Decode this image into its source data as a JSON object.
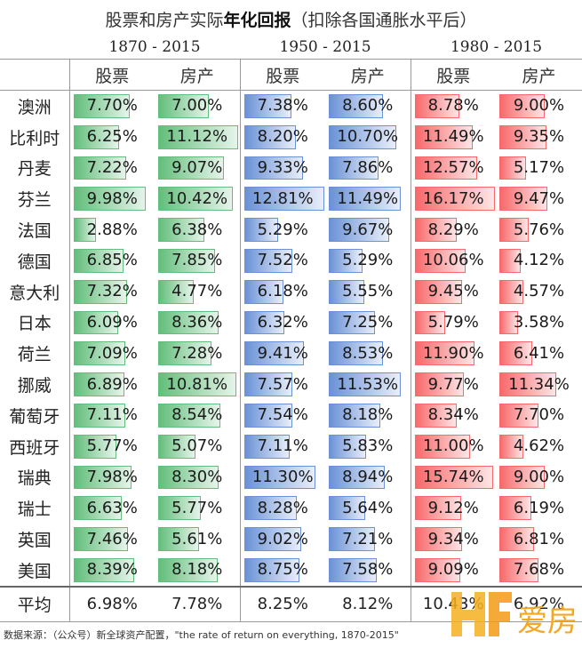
{
  "title_regular": "股票和房产实际",
  "title_bold": "年化回报",
  "title_suffix": "（扣除各国通胀水平后）",
  "periods": [
    "1870 - 2015",
    "1950 - 2015",
    "1980 - 2015"
  ],
  "sub_headers": [
    "股票",
    "房产",
    "股票",
    "房产",
    "股票",
    "房产"
  ],
  "source": "数据来源：（公众号）新全球资产配置，\"the rate of return on everything, 1870-2015\"",
  "logo_text": "爱房",
  "colors": {
    "green": "#63be7b",
    "blue": "#6b92d6",
    "red": "#f8696b"
  },
  "chart_data": {
    "type": "table",
    "title": "股票和房产实际年化回报（扣除各国通胀水平后）",
    "columns": [
      "1870-2015 股票",
      "1870-2015 房产",
      "1950-2015 股票",
      "1950-2015 房产",
      "1980-2015 股票",
      "1980-2015 房产"
    ],
    "rows": [
      {
        "country": "澳洲",
        "values": [
          "7.70%",
          "7.00%",
          "7.38%",
          "8.60%",
          "8.78%",
          "9.00%"
        ]
      },
      {
        "country": "比利时",
        "values": [
          "6.25%",
          "11.12%",
          "8.20%",
          "10.70%",
          "11.49%",
          "9.35%"
        ]
      },
      {
        "country": "丹麦",
        "values": [
          "7.22%",
          "9.07%",
          "9.33%",
          "7.86%",
          "12.57%",
          "5.17%"
        ]
      },
      {
        "country": "芬兰",
        "values": [
          "9.98%",
          "10.42%",
          "12.81%",
          "11.49%",
          "16.17%",
          "9.47%"
        ]
      },
      {
        "country": "法国",
        "values": [
          "2.88%",
          "6.38%",
          "5.29%",
          "9.67%",
          "8.29%",
          "5.76%"
        ]
      },
      {
        "country": "德国",
        "values": [
          "6.85%",
          "7.85%",
          "7.52%",
          "5.29%",
          "10.06%",
          "4.12%"
        ]
      },
      {
        "country": "意大利",
        "values": [
          "7.32%",
          "4.77%",
          "6.18%",
          "5.55%",
          "9.45%",
          "4.57%"
        ]
      },
      {
        "country": "日本",
        "values": [
          "6.09%",
          "8.36%",
          "6.32%",
          "7.25%",
          "5.79%",
          "3.58%"
        ]
      },
      {
        "country": "荷兰",
        "values": [
          "7.09%",
          "7.28%",
          "9.41%",
          "8.53%",
          "11.90%",
          "6.41%"
        ]
      },
      {
        "country": "挪威",
        "values": [
          "6.89%",
          "10.81%",
          "7.57%",
          "11.53%",
          "9.77%",
          "11.34%"
        ]
      },
      {
        "country": "葡萄牙",
        "values": [
          "7.11%",
          "8.54%",
          "7.54%",
          "8.18%",
          "8.34%",
          "7.70%"
        ]
      },
      {
        "country": "西班牙",
        "values": [
          "5.77%",
          "5.07%",
          "7.11%",
          "5.83%",
          "11.00%",
          "4.62%"
        ]
      },
      {
        "country": "瑞典",
        "values": [
          "7.98%",
          "8.30%",
          "11.30%",
          "8.94%",
          "15.74%",
          "9.00%"
        ]
      },
      {
        "country": "瑞士",
        "values": [
          "6.63%",
          "5.77%",
          "8.28%",
          "5.64%",
          "9.12%",
          "6.19%"
        ]
      },
      {
        "country": "英国",
        "values": [
          "7.46%",
          "5.61%",
          "9.02%",
          "7.21%",
          "9.34%",
          "6.81%"
        ]
      },
      {
        "country": "美国",
        "values": [
          "8.39%",
          "8.18%",
          "8.75%",
          "7.58%",
          "9.09%",
          "7.68%"
        ]
      }
    ],
    "average": {
      "country": "平均",
      "values": [
        "6.98%",
        "7.78%",
        "8.25%",
        "8.12%",
        "10.43%",
        "6.92%"
      ]
    }
  }
}
